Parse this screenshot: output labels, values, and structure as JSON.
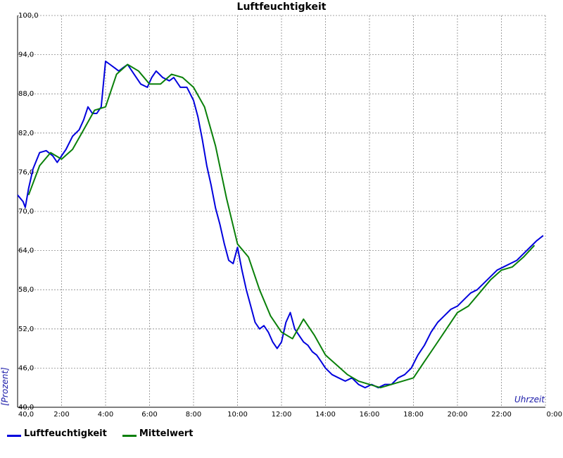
{
  "chart_data": {
    "type": "line",
    "title": "Luftfeuchtigkeit",
    "xlabel": "Uhrzeit",
    "ylabel": "[Prozent]",
    "x_unit": "hours",
    "xlim": [
      0,
      24
    ],
    "ylim": [
      40,
      100
    ],
    "x_tick_labels": [
      "",
      "2:00",
      "4:00",
      "6:00",
      "8:00",
      "10:00",
      "12:00",
      "14:00",
      "16:00",
      "18:00",
      "20:00",
      "22:00",
      "0:00"
    ],
    "y_ticks": [
      "40,0",
      "46,0",
      "52,0",
      "58,0",
      "64,0",
      "70,0",
      "76,0",
      "82,0",
      "88,0",
      "94,0",
      "100,0"
    ],
    "grid": true,
    "legend_position": "bottom-left",
    "series": [
      {
        "name": "Luftfeuchtigkeit",
        "color": "#0000dd",
        "x": [
          0,
          0.25,
          0.35,
          0.5,
          0.7,
          1.0,
          1.3,
          1.6,
          1.8,
          2.0,
          2.2,
          2.5,
          2.8,
          3.0,
          3.2,
          3.4,
          3.6,
          3.8,
          4.0,
          4.2,
          4.4,
          4.6,
          4.8,
          5.0,
          5.3,
          5.6,
          5.9,
          6.1,
          6.3,
          6.6,
          6.9,
          7.1,
          7.4,
          7.7,
          8.0,
          8.2,
          8.4,
          8.6,
          8.8,
          9.0,
          9.2,
          9.4,
          9.6,
          9.8,
          10.0,
          10.2,
          10.4,
          10.6,
          10.8,
          11.0,
          11.2,
          11.4,
          11.6,
          11.8,
          12.0,
          12.2,
          12.4,
          12.6,
          12.8,
          13.0,
          13.2,
          13.4,
          13.6,
          13.8,
          14.0,
          14.3,
          14.6,
          14.9,
          15.2,
          15.5,
          15.8,
          16.1,
          16.4,
          16.7,
          17.0,
          17.3,
          17.6,
          17.9,
          18.2,
          18.5,
          18.8,
          19.1,
          19.4,
          19.7,
          20.0,
          20.3,
          20.6,
          20.9,
          21.2,
          21.5,
          21.8,
          22.1,
          22.4,
          22.7,
          23.0,
          23.3,
          23.6,
          23.9
        ],
        "values": [
          72.5,
          71.5,
          70.6,
          73.5,
          76.5,
          79.0,
          79.3,
          78.5,
          77.5,
          78.5,
          79.5,
          81.5,
          82.5,
          84.0,
          86.0,
          85.0,
          85.0,
          86.0,
          93.0,
          92.5,
          92.0,
          91.5,
          92.0,
          92.5,
          91.0,
          89.5,
          89.0,
          90.5,
          91.5,
          90.5,
          90.0,
          90.5,
          89.0,
          89.0,
          87.0,
          84.5,
          81.0,
          77.0,
          74.0,
          70.5,
          68.0,
          65.0,
          62.5,
          62.0,
          64.5,
          61.0,
          58.0,
          55.5,
          53.0,
          52.0,
          52.5,
          51.5,
          50.0,
          49.0,
          50.0,
          53.0,
          54.5,
          52.0,
          51.0,
          50.0,
          49.5,
          48.5,
          48.0,
          47.0,
          46.0,
          45.0,
          44.5,
          44.0,
          44.5,
          43.5,
          43.0,
          43.5,
          43.0,
          43.5,
          43.5,
          44.5,
          45.0,
          46.0,
          48.0,
          49.5,
          51.5,
          53.0,
          54.0,
          55.0,
          55.5,
          56.5,
          57.5,
          58.0,
          59.0,
          60.0,
          61.0,
          61.5,
          62.0,
          62.5,
          63.5,
          64.5,
          65.5,
          66.3
        ]
      },
      {
        "name": "Mittelwert",
        "color": "#0a800a",
        "x": [
          0.5,
          1.0,
          1.5,
          2.0,
          2.5,
          3.0,
          3.5,
          4.0,
          4.5,
          5.0,
          5.5,
          6.0,
          6.5,
          7.0,
          7.5,
          8.0,
          8.5,
          9.0,
          9.5,
          10.0,
          10.5,
          11.0,
          11.5,
          12.0,
          12.5,
          13.0,
          13.5,
          14.0,
          14.5,
          15.0,
          15.5,
          16.0,
          16.5,
          17.0,
          17.5,
          18.0,
          18.5,
          19.0,
          19.5,
          20.0,
          20.5,
          21.0,
          21.5,
          22.0,
          22.5,
          23.0,
          23.5
        ],
        "values": [
          72.5,
          77.0,
          79.0,
          78.0,
          79.5,
          82.5,
          85.5,
          86.0,
          91.0,
          92.5,
          91.5,
          89.5,
          89.5,
          91.0,
          90.5,
          89.0,
          86.0,
          80.0,
          72.0,
          65.0,
          63.0,
          58.0,
          54.0,
          51.5,
          50.5,
          53.5,
          51.0,
          48.0,
          46.5,
          45.0,
          44.0,
          43.5,
          43.0,
          43.5,
          44.0,
          44.5,
          47.0,
          49.5,
          52.0,
          54.5,
          55.5,
          57.5,
          59.5,
          61.0,
          61.5,
          63.0,
          64.8
        ]
      }
    ]
  }
}
